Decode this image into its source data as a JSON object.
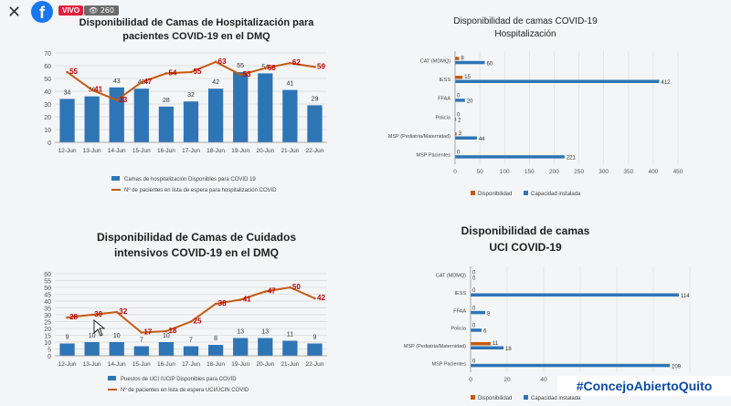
{
  "stream": {
    "live_label": "VIVO",
    "viewers": "260"
  },
  "hashtag": "#ConcejoAbiertoQuito",
  "chart_data": [
    {
      "type": "bar",
      "title": "Disponibilidad de Camas de Hospitalización para pacientes COVID-19 en el DMQ",
      "title_lines": [
        "Disponibilidad de Camas de Hospitalización para",
        "pacientes COVID-19 en el DMQ"
      ],
      "categories": [
        "12-Jun",
        "13-Jun",
        "14-Jun",
        "15-Jun",
        "16-Jun",
        "17-Jun",
        "18-Jun",
        "19-Jun",
        "20-Jun",
        "21-Jun",
        "22-Jun"
      ],
      "series": [
        {
          "name": "Camas de hospitalización Disponibles para COVID 19",
          "kind": "bar",
          "color": "#2e75b6",
          "values": [
            34,
            36,
            43,
            42,
            28,
            32,
            42,
            55,
            54,
            41,
            29
          ]
        },
        {
          "name": "Nº de pacientes en lista de espera para hospitalización COVID",
          "kind": "line",
          "color": "#c55a11",
          "values": [
            55,
            41,
            33,
            47,
            54,
            55,
            63,
            53,
            58,
            62,
            59
          ]
        }
      ],
      "ylim": [
        0,
        70
      ],
      "yticks": [
        0,
        10,
        20,
        30,
        40,
        50,
        60,
        70
      ],
      "grid": true,
      "legend": "bottom"
    },
    {
      "type": "bar",
      "orientation": "horizontal",
      "title": "Disponibilidad de camas COVID-19 Hospitalización",
      "title_lines": [
        "Disponibilidad de camas COVID-19",
        "Hospitalización"
      ],
      "categories": [
        "CAT (MDMQ)",
        "IESS",
        "FFAA",
        "Policía",
        "MSP (Pediatría/Maternidad)",
        "MSP Pacientes"
      ],
      "series": [
        {
          "name": "Disponibilidad",
          "color": "#c55a11",
          "values": [
            8,
            15,
            0,
            0,
            3,
            0
          ],
          "labels": [
            "8",
            "15",
            "0",
            "0",
            "3",
            "0"
          ]
        },
        {
          "name": "Capacidad instalada",
          "color": "#2e75b6",
          "values": [
            60,
            412,
            20,
            2,
            44,
            221
          ],
          "labels": [
            "60",
            "412",
            "20",
            "2",
            "44",
            "221"
          ]
        }
      ],
      "xlim": [
        0,
        450
      ],
      "xticks": [
        0,
        50,
        100,
        150,
        200,
        250,
        300,
        350,
        400,
        450
      ],
      "legend": "bottom"
    },
    {
      "type": "bar",
      "title": "Disponibilidad de Camas de Cuidados intensivos COVID-19 en el DMQ",
      "title_lines": [
        "Disponibilidad de Camas de Cuidados",
        "intensivos COVID-19 en el DMQ"
      ],
      "categories": [
        "12-Jun",
        "13-Jun",
        "14-Jun",
        "15-Jun",
        "16-Jun",
        "17-Jun",
        "18-Jun",
        "19-Jun",
        "20-Jun",
        "21-Jun",
        "22-Jun"
      ],
      "series": [
        {
          "name": "Puestos de UCI /UCIP Disponibles para COVID",
          "kind": "bar",
          "color": "#2e75b6",
          "values": [
            9,
            10,
            10,
            7,
            10,
            7,
            8,
            13,
            13,
            11,
            9
          ]
        },
        {
          "name": "Nº de pacientes en lista de espera UCI/UCIN COVID",
          "kind": "line",
          "color": "#c55a11",
          "values": [
            28,
            30,
            32,
            17,
            18,
            25,
            38,
            41,
            47,
            50,
            42
          ]
        }
      ],
      "ylim": [
        0,
        60
      ],
      "yticks": [
        0,
        5,
        10,
        15,
        20,
        25,
        30,
        35,
        40,
        45,
        50,
        55,
        60
      ],
      "ytick_labels": [
        "0",
        "5",
        "10",
        "15",
        "20",
        "25",
        "30",
        "35",
        "40",
        "45",
        "50",
        "55",
        "60"
      ],
      "grid": true,
      "legend": "bottom"
    },
    {
      "type": "bar",
      "orientation": "horizontal",
      "title": "Disponibilidad de camas UCI COVID-19",
      "title_lines": [
        "Disponibilidad de camas",
        "UCI  COVID-19"
      ],
      "categories": [
        "CAT (MDMQ)",
        "IESS",
        "FFAA",
        "Policía",
        "MSP (Pediatría/Maternidad)",
        "MSP Pacientes"
      ],
      "series": [
        {
          "name": "Disponibilidad",
          "color": "#c55a11",
          "values": [
            0,
            0,
            0,
            0,
            11,
            0
          ],
          "labels": [
            "0",
            "0",
            "0",
            "0",
            "11",
            "0"
          ]
        },
        {
          "name": "Capacidad instalada",
          "color": "#2e75b6",
          "values": [
            0,
            114,
            8,
            6,
            18,
            109
          ],
          "labels": [
            "0",
            "114",
            "8",
            "6",
            "18",
            "109"
          ]
        }
      ],
      "xlim": [
        0,
        120
      ],
      "xticks": [
        0,
        20,
        40,
        60,
        80,
        100,
        120
      ],
      "xtick_labels_visible": [
        "0",
        "20",
        "40",
        "60"
      ],
      "legend": "bottom"
    }
  ]
}
